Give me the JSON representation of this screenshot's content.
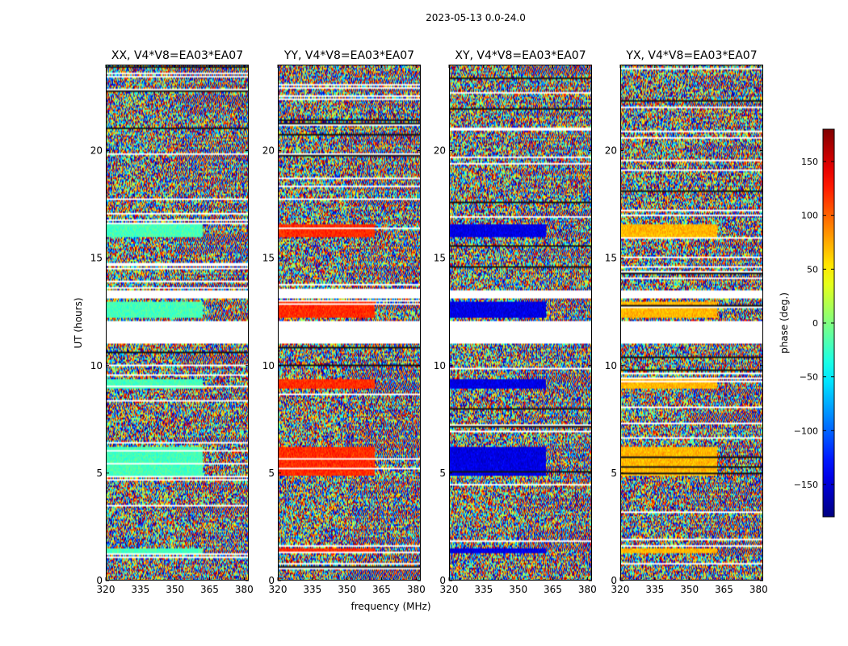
{
  "figure": {
    "suptitle": "2023-05-13 0.0-24.0",
    "xlabel": "frequency (MHz)",
    "ylabel": "UT (hours)"
  },
  "chart_data": {
    "type": "heatmap",
    "title": "2023-05-13 0.0-24.0",
    "xlabel": "frequency (MHz)",
    "ylabel": "UT (hours)",
    "xlim": [
      320,
      382
    ],
    "ylim": [
      0,
      24
    ],
    "xticks": [
      320,
      335,
      350,
      365,
      380
    ],
    "yticks": [
      0,
      5,
      10,
      15,
      20
    ],
    "colorbar": {
      "label": "phase (deg.)",
      "range": [
        -180,
        180
      ],
      "ticks": [
        -150,
        -100,
        -50,
        0,
        50,
        100,
        150
      ],
      "tick_labels": [
        "−150",
        "−100",
        "−50",
        "0",
        "50",
        "100",
        "150"
      ],
      "colormap": "jet"
    },
    "gaps_hours": [
      [
        11.0,
        12.1
      ],
      [
        13.1,
        13.5
      ]
    ],
    "coherent_bands": [
      [
        1.3,
        1.5
      ],
      [
        4.9,
        6.2
      ],
      [
        8.9,
        9.4
      ],
      [
        12.2,
        13.0
      ],
      [
        16.0,
        16.6
      ]
    ],
    "panels": [
      {
        "title": "XX, V4*V8=EA03*EA07",
        "coherent_phase_deg": -20
      },
      {
        "title": "YY, V4*V8=EA03*EA07",
        "coherent_phase_deg": 120
      },
      {
        "title": "XY, V4*V8=EA03*EA07",
        "coherent_phase_deg": -145
      },
      {
        "title": "YX, V4*V8=EA03*EA07",
        "coherent_phase_deg": 70
      }
    ]
  }
}
